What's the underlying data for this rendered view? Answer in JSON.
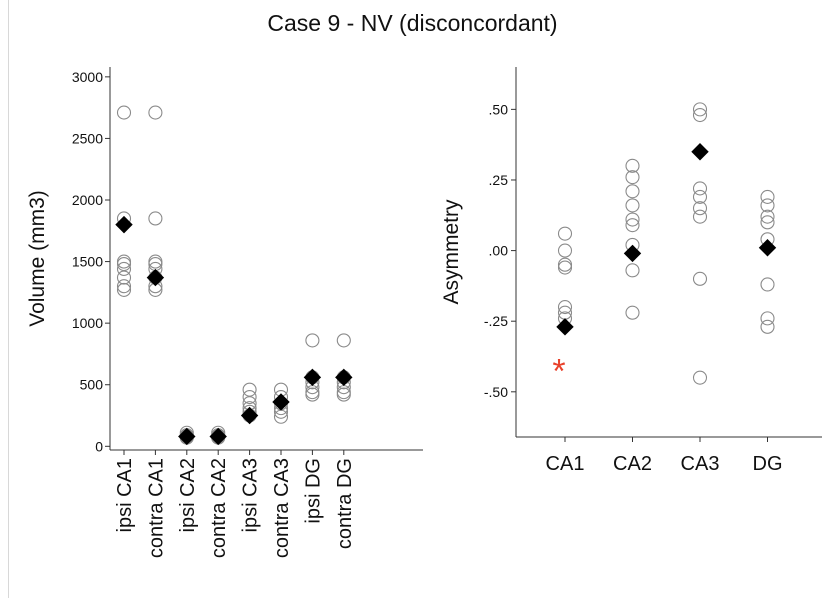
{
  "title": "Case 9 - NV (disconcordant)",
  "chart_data": [
    {
      "type": "scatter",
      "ylabel": "Volume (mm3)",
      "ylim": [
        -30,
        3080
      ],
      "yticks": [
        0,
        500,
        1000,
        1500,
        2000,
        2500,
        3000
      ],
      "ytick_labels": [
        "0",
        "500",
        "1000",
        "1500",
        "2000",
        "2500",
        "3000"
      ],
      "categories": [
        "ipsi CA1",
        "contra CA1",
        "ipsi CA2",
        "contra CA2",
        "ipsi CA3",
        "contra CA3",
        "ipsi DG",
        "contra DG"
      ],
      "series": [
        {
          "marker": "open-circle",
          "values": [
            [
              2710,
              1850,
              1500,
              1480,
              1440,
              1370,
              1300,
              1270
            ],
            [
              2710,
              1850,
              1500,
              1480,
              1440,
              1370,
              1300,
              1270
            ],
            [
              110,
              90,
              80,
              70
            ],
            [
              110,
              90,
              80,
              70
            ],
            [
              460,
              400,
              350,
              310,
              280,
              250
            ],
            [
              460,
              400,
              350,
              310,
              280,
              240
            ],
            [
              860,
              560,
              520,
              480,
              440,
              420
            ],
            [
              860,
              560,
              520,
              480,
              440,
              420
            ]
          ]
        },
        {
          "marker": "filled-diamond",
          "values": [
            1800,
            1370,
            80,
            80,
            250,
            360,
            560,
            560
          ]
        }
      ]
    },
    {
      "type": "scatter",
      "ylabel": "Asymmetry",
      "ylim": [
        -0.66,
        0.65
      ],
      "yticks": [
        -0.5,
        -0.25,
        0.0,
        0.25,
        0.5
      ],
      "ytick_labels": [
        "-.50",
        "-.25",
        ".00",
        ".25",
        ".50"
      ],
      "categories": [
        "CA1",
        "CA2",
        "CA3",
        "DG"
      ],
      "series": [
        {
          "marker": "open-circle",
          "values": [
            [
              0.06,
              0.0,
              -0.05,
              -0.06,
              -0.2,
              -0.22,
              -0.24
            ],
            [
              0.3,
              0.26,
              0.21,
              0.16,
              0.11,
              0.09,
              0.02,
              -0.07,
              -0.22
            ],
            [
              0.5,
              0.48,
              0.22,
              0.19,
              0.15,
              0.12,
              -0.1,
              -0.45
            ],
            [
              0.19,
              0.16,
              0.12,
              0.1,
              0.04,
              -0.12,
              -0.24,
              -0.27
            ]
          ]
        },
        {
          "marker": "filled-diamond",
          "values": [
            -0.27,
            -0.01,
            0.35,
            0.01
          ]
        }
      ],
      "annotations": [
        {
          "text": "*",
          "category": "CA1",
          "y": -0.41,
          "color": "#e8402a"
        }
      ]
    }
  ]
}
